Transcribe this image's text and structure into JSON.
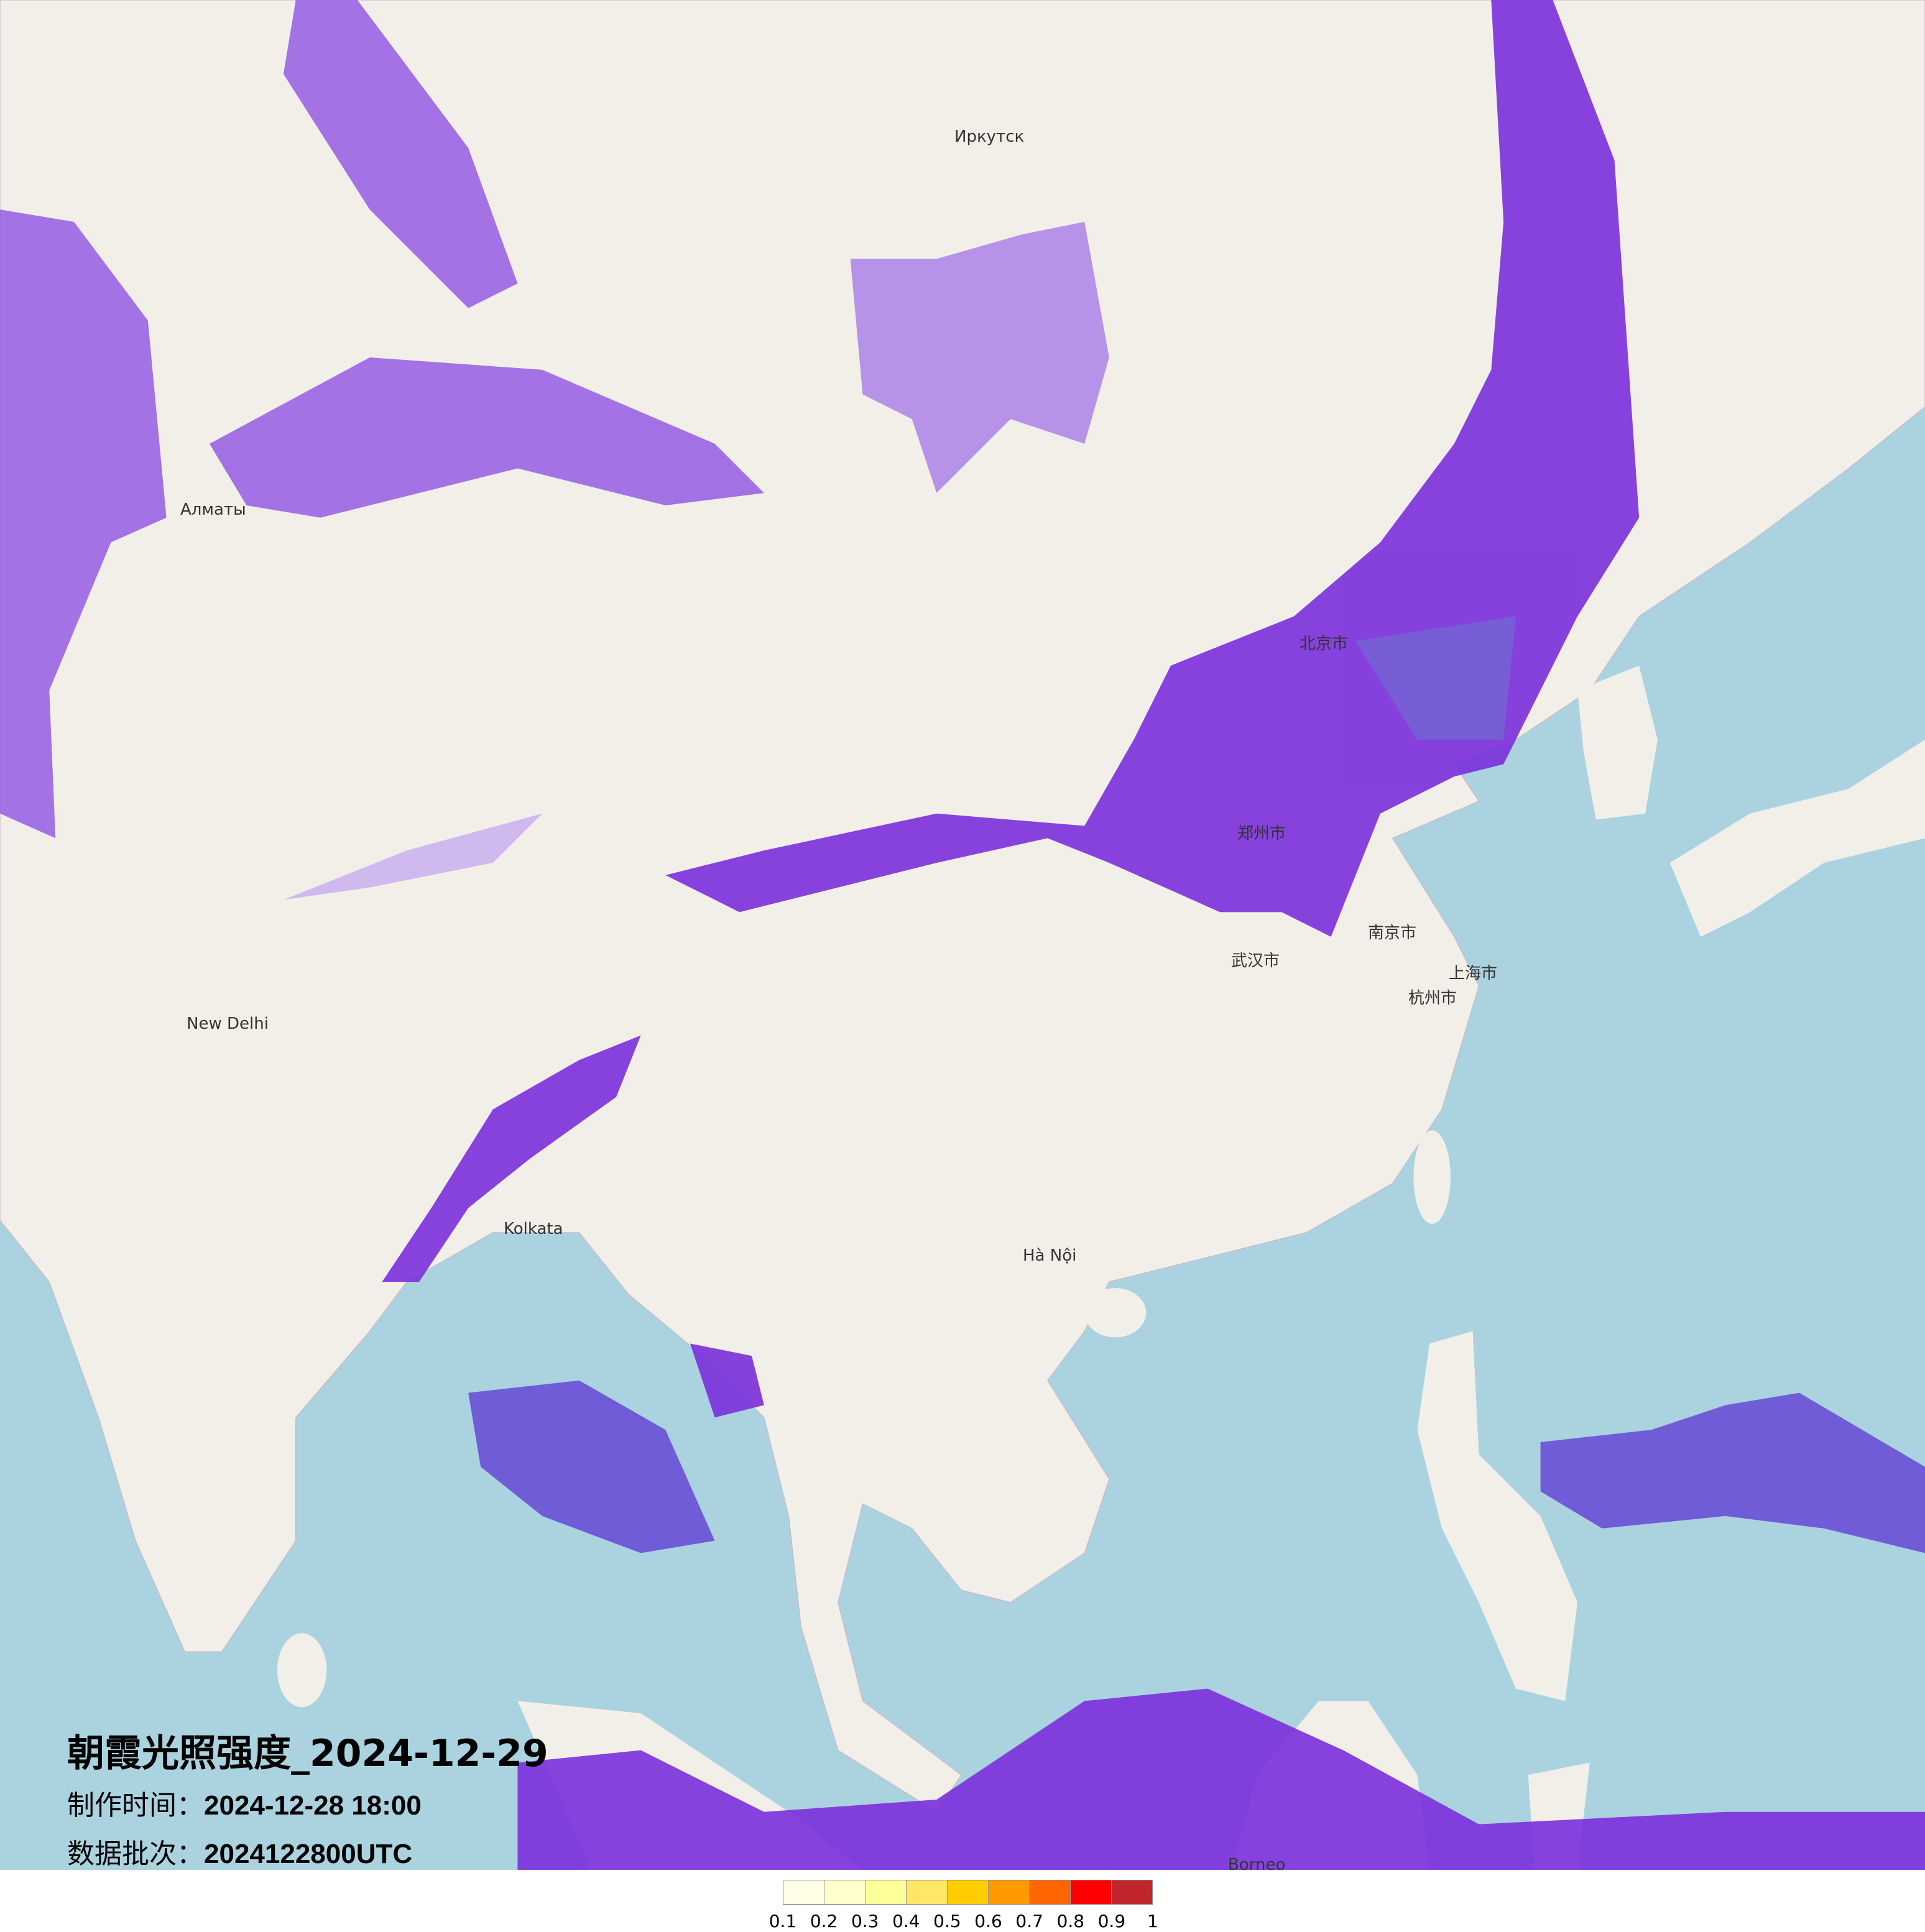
{
  "title": "朝霞光照强度_2024-12-29",
  "production_time": {
    "label": "制作时间：",
    "value": "2024-12-28 18:00"
  },
  "data_batch": {
    "label": "数据批次：",
    "value": "2024122800UTC"
  },
  "colors": {
    "land": "#f2efe9",
    "sea": "#aad3df",
    "overlay_strong": "#7b2fdc",
    "overlay_mid": "#9a64e4",
    "overlay_light": "#cbb3ee"
  },
  "legend": {
    "colors": [
      "#ffffe8",
      "#ffffcc",
      "#ffff99",
      "#ffe666",
      "#ffcc00",
      "#ff9900",
      "#ff6600",
      "#ff0000",
      "#c0272d"
    ],
    "ticks": [
      "0.1",
      "0.2",
      "0.3",
      "0.4",
      "0.5",
      "0.6",
      "0.7",
      "0.8",
      "0.9",
      "1"
    ]
  },
  "map_labels": [
    {
      "name": "北京市"
    },
    {
      "name": "郑州市"
    },
    {
      "name": "南京市"
    },
    {
      "name": "武汉市"
    },
    {
      "name": "上海市"
    },
    {
      "name": "杭州市"
    },
    {
      "name": "Irkutsk",
      "text": "Иркутск"
    },
    {
      "name": "Almaty",
      "text": "Алматы"
    },
    {
      "name": "New Delhi",
      "text": "New Delhi"
    },
    {
      "name": "Kolkata",
      "text": "Kolkata"
    },
    {
      "name": "Hanoi",
      "text": "Hà Nội"
    },
    {
      "name": "Borneo",
      "text": "Borneo"
    }
  ]
}
